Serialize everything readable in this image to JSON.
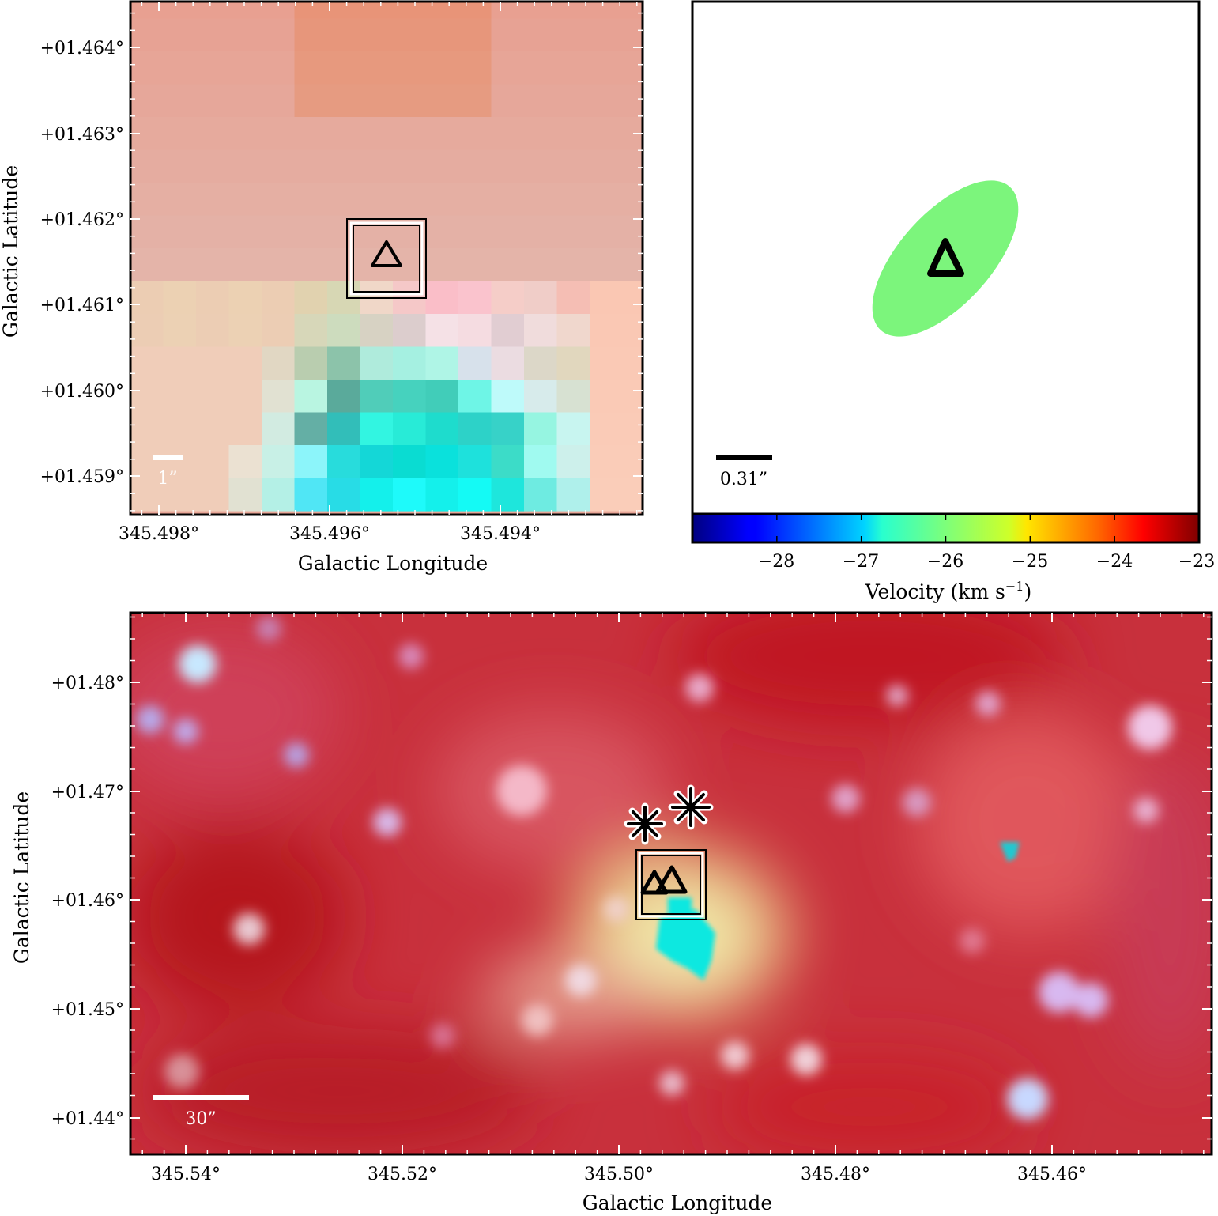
{
  "chart_data": [
    {
      "panel": "top-left",
      "type": "heatmap",
      "xlabel": "Galactic Longitude",
      "ylabel": "Galactic Latitude",
      "x_ticks": [
        "345.498°",
        "345.496°",
        "345.494°"
      ],
      "y_ticks": [
        "+01.464°",
        "+01.463°",
        "+01.462°",
        "+01.461°",
        "+01.460°",
        "+01.459°"
      ],
      "scale_bar_label": "1”",
      "markers": [
        {
          "symbol": "triangle",
          "boxed": true
        }
      ]
    },
    {
      "panel": "top-right",
      "type": "scatter",
      "markers": [
        {
          "symbol": "triangle",
          "boxed": false
        }
      ],
      "ellipse_color": "#7cf57c",
      "scale_bar_label": "0.31”",
      "colorbar": {
        "label": "Velocity (km s",
        "label_superscript": "−1",
        "label_close": ")",
        "ticks": [
          "−28",
          "−27",
          "−26",
          "−25",
          "−24",
          "−23"
        ],
        "range": [
          -29,
          -23
        ],
        "colormap": "jet"
      }
    },
    {
      "panel": "bottom",
      "type": "heatmap",
      "xlabel": "Galactic Longitude",
      "ylabel": "Galactic Latitude",
      "x_ticks": [
        "345.54°",
        "345.52°",
        "345.50°",
        "345.48°",
        "345.46°"
      ],
      "y_ticks": [
        "+01.48°",
        "+01.47°",
        "+01.46°",
        "+01.45°",
        "+01.44°"
      ],
      "scale_bar_label": "30”",
      "markers": [
        {
          "symbol": "triangle",
          "count": 2,
          "boxed": true
        },
        {
          "symbol": "asterisk",
          "count": 2
        }
      ]
    }
  ],
  "colors": {
    "frame": "#000000",
    "marker_outline": "#000000",
    "top_left_background": "#e8a596",
    "bottom_background": "#c8303c",
    "cyan_source": "#10e8e0"
  }
}
